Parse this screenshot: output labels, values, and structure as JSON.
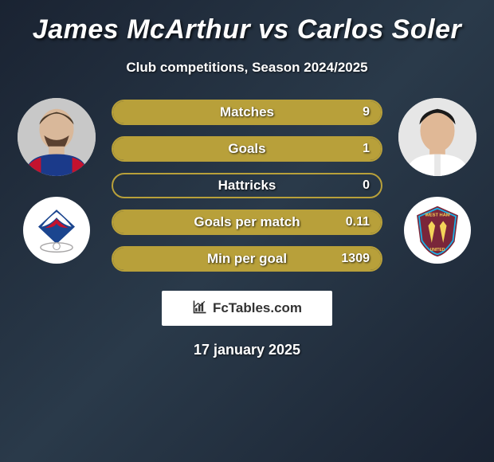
{
  "title": "James McArthur vs Carlos Soler",
  "subtitle": "Club competitions, Season 2024/2025",
  "date": "17 january 2025",
  "branding": "FcTables.com",
  "players": {
    "left": {
      "name": "James McArthur"
    },
    "right": {
      "name": "Carlos Soler"
    }
  },
  "bars": {
    "border_color": "#b8a03a",
    "fill_color": "#b8a03a",
    "height": 32,
    "radius": 16,
    "font_size": 17,
    "items": [
      {
        "label": "Matches",
        "right_value": "9",
        "right_fill_pct": 100
      },
      {
        "label": "Goals",
        "right_value": "1",
        "right_fill_pct": 100
      },
      {
        "label": "Hattricks",
        "right_value": "0",
        "right_fill_pct": 0
      },
      {
        "label": "Goals per match",
        "right_value": "0.11",
        "right_fill_pct": 100
      },
      {
        "label": "Min per goal",
        "right_value": "1309",
        "right_fill_pct": 100
      }
    ]
  },
  "colors": {
    "background_gradient": [
      "#1a2332",
      "#2a3a4a",
      "#1a2332"
    ],
    "text": "#ffffff",
    "branding_bg": "#ffffff",
    "branding_text": "#333333"
  },
  "crests": {
    "left": {
      "name": "Crystal Palace",
      "primary": "#1b458f",
      "secondary": "#c4122e",
      "accent": "#a7a5a6"
    },
    "right": {
      "name": "West Ham United",
      "primary": "#7a263a",
      "secondary": "#1bb1e7",
      "accent": "#f3d459"
    }
  }
}
